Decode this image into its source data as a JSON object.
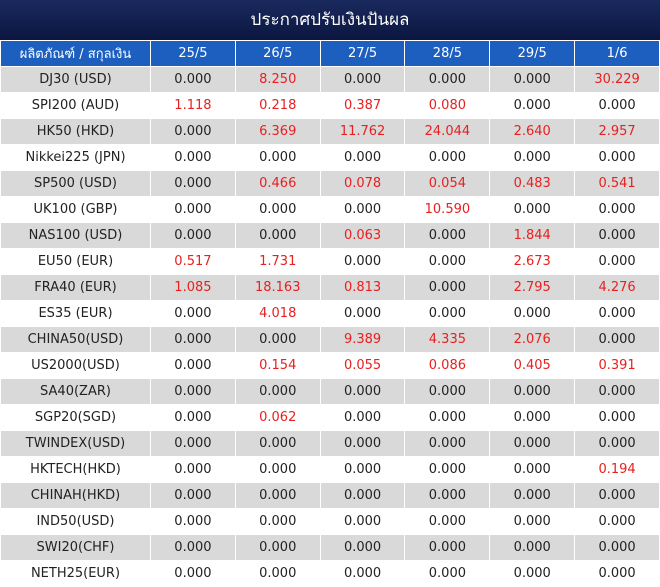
{
  "header": {
    "title": "ประกาศปรับเงินปันผล"
  },
  "table": {
    "columns": [
      "ผลิตภัณฑ์ / สกุลเงิน",
      "25/5",
      "26/5",
      "27/5",
      "28/5",
      "29/5",
      "1/6"
    ],
    "rows": [
      [
        "DJ30 (USD)",
        "0.000",
        "8.250",
        "0.000",
        "0.000",
        "0.000",
        "30.229"
      ],
      [
        "SPI200 (AUD)",
        "1.118",
        "0.218",
        "0.387",
        "0.080",
        "0.000",
        "0.000"
      ],
      [
        "HK50 (HKD)",
        "0.000",
        "6.369",
        "11.762",
        "24.044",
        "2.640",
        "2.957"
      ],
      [
        "Nikkei225 (JPN)",
        "0.000",
        "0.000",
        "0.000",
        "0.000",
        "0.000",
        "0.000"
      ],
      [
        "SP500 (USD)",
        "0.000",
        "0.466",
        "0.078",
        "0.054",
        "0.483",
        "0.541"
      ],
      [
        "UK100 (GBP)",
        "0.000",
        "0.000",
        "0.000",
        "10.590",
        "0.000",
        "0.000"
      ],
      [
        "NAS100 (USD)",
        "0.000",
        "0.000",
        "0.063",
        "0.000",
        "1.844",
        "0.000"
      ],
      [
        "EU50 (EUR)",
        "0.517",
        "1.731",
        "0.000",
        "0.000",
        "2.673",
        "0.000"
      ],
      [
        "FRA40 (EUR)",
        "1.085",
        "18.163",
        "0.813",
        "0.000",
        "2.795",
        "4.276"
      ],
      [
        "ES35 (EUR)",
        "0.000",
        "4.018",
        "0.000",
        "0.000",
        "0.000",
        "0.000"
      ],
      [
        "CHINA50(USD)",
        "0.000",
        "0.000",
        "9.389",
        "4.335",
        "2.076",
        "0.000"
      ],
      [
        "US2000(USD)",
        "0.000",
        "0.154",
        "0.055",
        "0.086",
        "0.405",
        "0.391"
      ],
      [
        "SA40(ZAR)",
        "0.000",
        "0.000",
        "0.000",
        "0.000",
        "0.000",
        "0.000"
      ],
      [
        "SGP20(SGD)",
        "0.000",
        "0.062",
        "0.000",
        "0.000",
        "0.000",
        "0.000"
      ],
      [
        "TWINDEX(USD)",
        "0.000",
        "0.000",
        "0.000",
        "0.000",
        "0.000",
        "0.000"
      ],
      [
        "HKTECH(HKD)",
        "0.000",
        "0.000",
        "0.000",
        "0.000",
        "0.000",
        "0.194"
      ],
      [
        "CHINAH(HKD)",
        "0.000",
        "0.000",
        "0.000",
        "0.000",
        "0.000",
        "0.000"
      ],
      [
        "IND50(USD)",
        "0.000",
        "0.000",
        "0.000",
        "0.000",
        "0.000",
        "0.000"
      ],
      [
        "SWI20(CHF)",
        "0.000",
        "0.000",
        "0.000",
        "0.000",
        "0.000",
        "0.000"
      ],
      [
        "NETH25(EUR)",
        "0.000",
        "0.000",
        "0.000",
        "0.000",
        "0.000",
        "0.000"
      ]
    ]
  }
}
